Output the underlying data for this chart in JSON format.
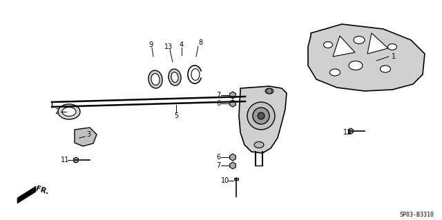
{
  "bg_color": "#ffffff",
  "line_color": "#000000",
  "part_gray": "#888888",
  "part_dark": "#444444",
  "part_light": "#cccccc",
  "diagram_code": "SP03-B3310",
  "fr_label": "FR.",
  "figsize": [
    6.4,
    3.19
  ],
  "dpi": 100
}
